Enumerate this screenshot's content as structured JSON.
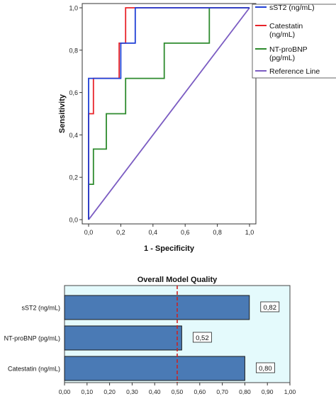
{
  "chart_data": [
    {
      "type": "line",
      "xlabel": "1 - Specificity",
      "ylabel": "Sensitivity",
      "xlim": [
        0,
        1
      ],
      "ylim": [
        0,
        1
      ],
      "x_ticks": [
        "0,0",
        "0,2",
        "0,4",
        "0,6",
        "0,8",
        "1,0"
      ],
      "y_ticks": [
        "0,0",
        "0,2",
        "0,4",
        "0,6",
        "0,8",
        "1,0"
      ],
      "legend_position": "right",
      "series": [
        {
          "name": "sST2 (ng/mL)",
          "color": "#1f3fd6",
          "x": [
            0,
            0,
            0,
            0.03,
            0.03,
            0.2,
            0.2,
            0.29,
            0.29,
            0.35,
            0.35,
            1.0
          ],
          "y": [
            0,
            0.5,
            0.667,
            0.667,
            0.667,
            0.667,
            0.833,
            0.833,
            1.0,
            1.0,
            1.0,
            1.0
          ]
        },
        {
          "name": "Catestatin (ng/mL)",
          "color": "#e8242a",
          "x": [
            0,
            0,
            0.03,
            0.03,
            0.19,
            0.19,
            0.23,
            0.23,
            0.34,
            0.34,
            1.0
          ],
          "y": [
            0,
            0.5,
            0.5,
            0.667,
            0.667,
            0.833,
            0.833,
            1.0,
            1.0,
            1.0,
            1.0
          ]
        },
        {
          "name": "NT-proBNP (pg/mL)",
          "color": "#2e8b2e",
          "x": [
            0,
            0,
            0.03,
            0.03,
            0.11,
            0.11,
            0.23,
            0.23,
            0.47,
            0.47,
            0.75,
            0.75,
            1.0
          ],
          "y": [
            0,
            0.167,
            0.167,
            0.333,
            0.333,
            0.5,
            0.5,
            0.667,
            0.667,
            0.833,
            0.833,
            1.0,
            1.0
          ]
        },
        {
          "name": "Reference Line",
          "color": "#7b5cc2",
          "x": [
            0,
            1
          ],
          "y": [
            0,
            1
          ]
        }
      ]
    },
    {
      "type": "bar",
      "orientation": "horizontal",
      "title": "Overall Model Quality",
      "categories": [
        "sST2 (ng/mL)",
        "NT-proBNP (pg/mL)",
        "Catestatin (ng/mL)"
      ],
      "values": [
        0.82,
        0.52,
        0.8
      ],
      "value_labels": [
        "0,82",
        "0,52",
        "0,80"
      ],
      "xlim": [
        0,
        1
      ],
      "x_ticks": [
        "0,00",
        "0,10",
        "0,20",
        "0,30",
        "0,40",
        "0,50",
        "0,60",
        "0,70",
        "0,80",
        "0,90",
        "1,00"
      ],
      "reference_line": 0.5,
      "bar_color": "#4a7ab5",
      "reference_color": "#cc2222",
      "background_color": "#e4fafc"
    }
  ]
}
